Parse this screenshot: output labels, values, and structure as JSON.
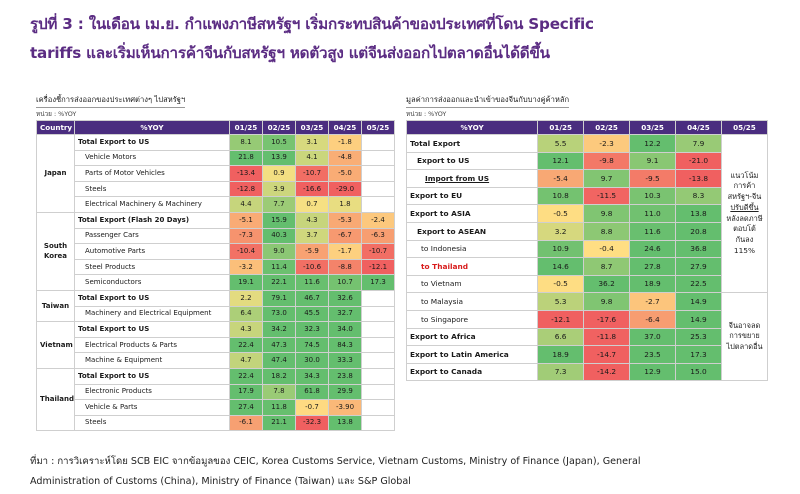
{
  "title_lines": [
    "รูปที่ 3 : ในเดือน เม.ย. กำแพงภาษีสหรัฐฯ เริ่มกระทบสินค้าของประเทศที่โดน Specific",
    "tariffs และเริ่มเห็นการค้าจีนกับสหรัฐฯ หดตัวสูง แต่จีนส่งออกไปตลาดอื่นได้ดีขึ้น"
  ],
  "colors": {
    "header_bg": "#4a2d7f",
    "title": "#5b2c83",
    "highlight_red": "#d81b1b"
  },
  "source_lines": [
    "ที่มา : การวิเคราะห์โดย SCB EIC จากข้อมูลของ CEIC, Korea Customs Service, Vietnam Customs, Ministry of Finance (Japan), General",
    "Administration of Customs (China), Ministry of Finance (Taiwan) และ S&P Global"
  ],
  "chart_data": [
    {
      "type": "table",
      "subtitle": "เครื่องชี้การส่งออกของประเทศต่างๆ ไปสหรัฐฯ",
      "unit": "หน่วย : %YOY",
      "columns": [
        "Country",
        "%YOY",
        "01/25",
        "02/25",
        "03/25",
        "04/25",
        "05/25"
      ],
      "groups": [
        {
          "country": "Japan",
          "rows": [
            {
              "label": "Total Export to US",
              "bold": true,
              "values": [
                8.1,
                10.5,
                3.1,
                -1.8,
                null
              ]
            },
            {
              "label": "Vehicle Motors",
              "values": [
                21.8,
                13.9,
                4.1,
                -4.8,
                null
              ]
            },
            {
              "label": "Parts of Motor Vehicles",
              "values": [
                -13.4,
                0.9,
                -10.7,
                -5.0,
                null
              ]
            },
            {
              "label": "Steels",
              "values": [
                -12.8,
                3.9,
                -16.6,
                -29.0,
                null
              ]
            },
            {
              "label": "Electrical Machinery & Machinery",
              "values": [
                4.4,
                7.7,
                0.7,
                1.8,
                null
              ]
            }
          ]
        },
        {
          "country": "South Korea",
          "rows": [
            {
              "label": "Total Export (Flash 20 Days)",
              "bold": true,
              "values": [
                -5.1,
                15.9,
                4.3,
                -5.3,
                -2.4
              ]
            },
            {
              "label": "Passenger Cars",
              "values": [
                -7.3,
                40.3,
                3.7,
                -6.7,
                -6.3
              ]
            },
            {
              "label": "Automotive Parts",
              "values": [
                -10.4,
                9.0,
                -5.9,
                -1.7,
                -10.7
              ]
            },
            {
              "label": "Steel Products",
              "values": [
                -3.2,
                11.4,
                -10.6,
                -8.8,
                -12.1
              ]
            },
            {
              "label": "Semiconductors",
              "values": [
                19.1,
                22.1,
                11.6,
                10.7,
                17.3
              ]
            }
          ]
        },
        {
          "country": "Taiwan",
          "rows": [
            {
              "label": "Total Export to US",
              "bold": true,
              "values": [
                2.2,
                79.1,
                46.7,
                32.6,
                null
              ]
            },
            {
              "label": "Machinery and Electrical Equipment",
              "values": [
                6.4,
                73.0,
                45.5,
                32.7,
                null
              ]
            }
          ]
        },
        {
          "country": "Vietnam",
          "rows": [
            {
              "label": "Total Export to US",
              "bold": true,
              "values": [
                4.3,
                34.2,
                32.3,
                34.0,
                null
              ]
            },
            {
              "label": "Electrical Products & Parts",
              "values": [
                22.4,
                47.3,
                74.5,
                84.3,
                null
              ]
            },
            {
              "label": "Machine & Equipment",
              "values": [
                4.7,
                47.4,
                30.0,
                33.3,
                null
              ]
            }
          ]
        },
        {
          "country": "Thailand",
          "rows": [
            {
              "label": "Total Export to US",
              "bold": true,
              "values": [
                22.4,
                18.2,
                34.3,
                23.8,
                null
              ]
            },
            {
              "label": "Electronic Products",
              "values": [
                17.9,
                7.8,
                61.8,
                29.9,
                null
              ]
            },
            {
              "label": "Vehicle & Parts",
              "values": [
                27.4,
                11.8,
                -0.7,
                -3.9,
                null
              ]
            },
            {
              "label": "Steels",
              "values": [
                -6.1,
                21.1,
                -32.3,
                13.8,
                null
              ]
            }
          ]
        }
      ]
    },
    {
      "type": "table",
      "subtitle": "มูลค่าการส่งออกและนำเข้าของจีนกับบางคู่ค้าหลัก",
      "unit": "หน่วย : %YOY",
      "columns": [
        "%YOY",
        "01/25",
        "02/25",
        "03/25",
        "04/25",
        "05/25"
      ],
      "rows": [
        {
          "label": "Total Export",
          "style": "bold",
          "values": [
            5.5,
            -2.3,
            12.2,
            7.9
          ]
        },
        {
          "label": "Export to US",
          "style": "bold-ind1",
          "values": [
            12.1,
            -9.8,
            9.1,
            -21.0
          ]
        },
        {
          "label": "Import from US",
          "style": "bold-ind2-underline",
          "values": [
            -5.4,
            9.7,
            -9.5,
            -13.8
          ]
        },
        {
          "label": "Export to EU",
          "style": "bold",
          "values": [
            10.8,
            -11.5,
            10.3,
            8.3
          ]
        },
        {
          "label": "Export to ASIA",
          "style": "bold",
          "values": [
            -0.5,
            9.8,
            11.0,
            13.8
          ]
        },
        {
          "label": "Export to ASEAN",
          "style": "bold-ind1",
          "values": [
            3.2,
            8.8,
            11.6,
            20.8
          ]
        },
        {
          "label": "to Indonesia",
          "style": "ind3",
          "values": [
            10.9,
            -0.4,
            24.6,
            36.8
          ]
        },
        {
          "label": "to Thailand",
          "style": "ind3-red",
          "values": [
            14.6,
            8.7,
            27.8,
            27.9
          ]
        },
        {
          "label": "to Vietnam",
          "style": "ind3",
          "values": [
            -0.5,
            36.2,
            18.9,
            22.5
          ]
        },
        {
          "label": "to Malaysia",
          "style": "ind3",
          "values": [
            5.3,
            9.8,
            -2.7,
            14.9
          ]
        },
        {
          "label": "to Singapore",
          "style": "ind3",
          "values": [
            -12.1,
            -17.6,
            -6.4,
            14.9
          ]
        },
        {
          "label": "Export to Africa",
          "style": "bold",
          "values": [
            6.6,
            -11.8,
            37.0,
            25.3
          ]
        },
        {
          "label": "Export to Latin America",
          "style": "bold",
          "values": [
            18.9,
            -14.7,
            23.5,
            17.3
          ]
        },
        {
          "label": "Export to Canada",
          "style": "bold",
          "values": [
            7.3,
            -14.2,
            12.9,
            15.0
          ]
        }
      ],
      "notes": [
        [
          "แนวโน้ม",
          "การค้า",
          "สหรัฐฯ-จีน",
          "ปรับดีขึ้น",
          "หลังลดภาษี",
          "ตอบโต้",
          "กันลง 115%"
        ],
        [
          "จีนอาจลด",
          "การขยาย",
          "ไปตลาดอื่น"
        ]
      ]
    }
  ]
}
